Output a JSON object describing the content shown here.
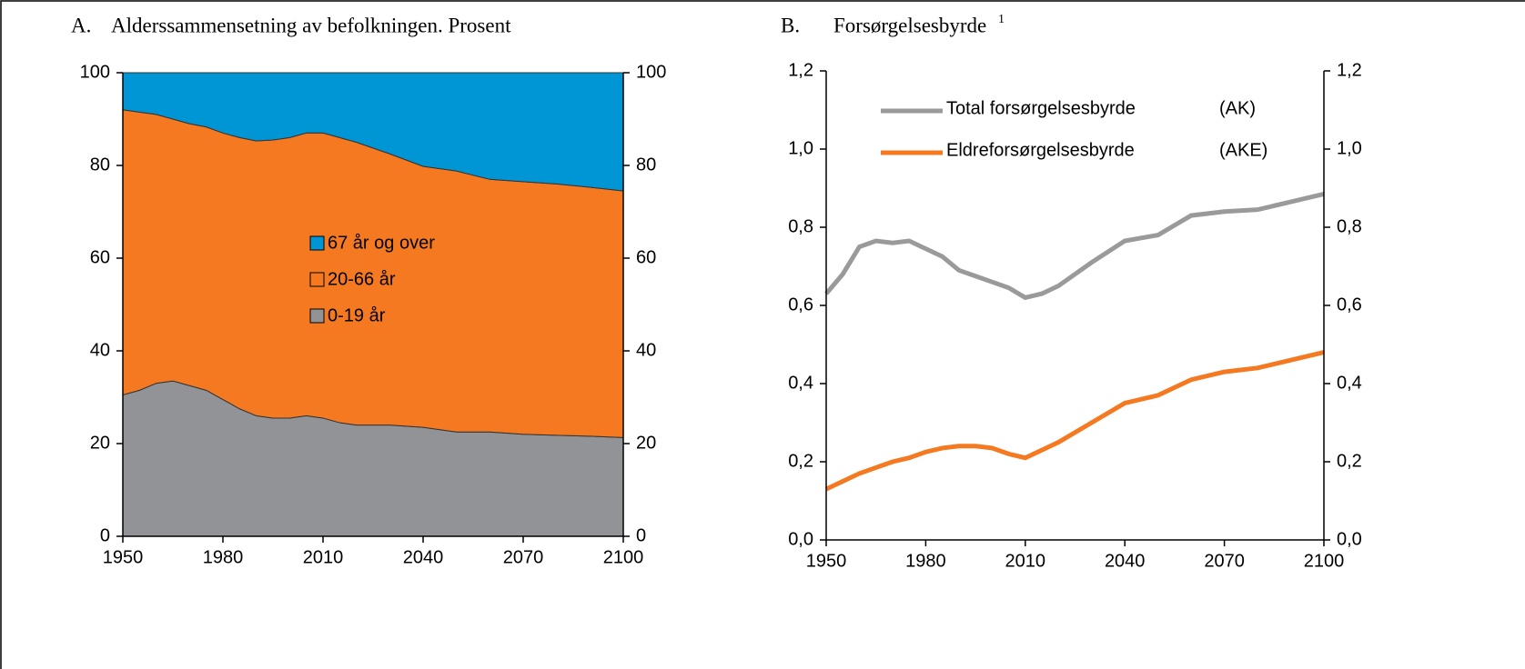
{
  "chart_data": [
    {
      "type": "stacked_area",
      "title_label": "A.",
      "title": "Alderssammensetning av befolkningen. Prosent",
      "x": [
        1950,
        1955,
        1960,
        1965,
        1970,
        1975,
        1980,
        1985,
        1990,
        1995,
        2000,
        2005,
        2010,
        2015,
        2020,
        2030,
        2040,
        2050,
        2060,
        2070,
        2080,
        2090,
        2100
      ],
      "series": [
        {
          "name": "0-19 år",
          "color": "#929397",
          "values": [
            30.5,
            31.5,
            33,
            33.5,
            32.5,
            31.5,
            29.5,
            27.5,
            26,
            25.5,
            25.5,
            26,
            25.5,
            24.5,
            24,
            24,
            23.5,
            22.5,
            22.5,
            22,
            21.8,
            21.6,
            21.3
          ]
        },
        {
          "name": "20-66 år",
          "color": "#f47920",
          "values": [
            61.5,
            60,
            58,
            56.5,
            56.5,
            56.8,
            57.5,
            58.5,
            59.3,
            60,
            60.5,
            61,
            61.5,
            61.5,
            61,
            58.5,
            56.3,
            56.3,
            54.5,
            54.5,
            54.2,
            53.7,
            53.2
          ]
        },
        {
          "name": "67 år og over",
          "color": "#0096d6",
          "values": [
            8,
            8.5,
            9,
            10,
            11,
            11.7,
            13,
            14,
            14.7,
            14.5,
            14,
            13,
            13,
            14,
            15,
            17.5,
            20.2,
            21.2,
            23,
            23.5,
            24,
            24.7,
            25.5
          ]
        }
      ],
      "xlim": [
        1950,
        2100
      ],
      "xticks": [
        1950,
        1980,
        2010,
        2040,
        2070,
        2100
      ],
      "ylim": [
        0,
        100
      ],
      "yticks": [
        0,
        20,
        40,
        60,
        80,
        100
      ],
      "y2lim": [
        0,
        100
      ],
      "y2ticks": [
        0,
        20,
        40,
        60,
        80,
        100
      ]
    },
    {
      "type": "line",
      "title_label": "B.",
      "title": "Forsørgelsesbyrde",
      "title_superscript": "1",
      "x": [
        1950,
        1955,
        1960,
        1965,
        1970,
        1975,
        1980,
        1985,
        1990,
        1995,
        2000,
        2005,
        2010,
        2015,
        2020,
        2030,
        2040,
        2050,
        2060,
        2070,
        2080,
        2090,
        2100
      ],
      "series": [
        {
          "name": "Total forsørgelsesbyrde",
          "note": "(AK)",
          "color": "#9a9a9a",
          "values": [
            0.63,
            0.68,
            0.75,
            0.765,
            0.76,
            0.765,
            0.745,
            0.725,
            0.69,
            0.675,
            0.66,
            0.645,
            0.62,
            0.63,
            0.65,
            0.71,
            0.765,
            0.78,
            0.83,
            0.84,
            0.845,
            0.865,
            0.885
          ]
        },
        {
          "name": "Eldreforsørgelsesbyrde",
          "note": "(AKE)",
          "color": "#f47920",
          "values": [
            0.13,
            0.15,
            0.17,
            0.185,
            0.2,
            0.21,
            0.225,
            0.235,
            0.24,
            0.24,
            0.235,
            0.22,
            0.21,
            0.23,
            0.25,
            0.3,
            0.35,
            0.37,
            0.41,
            0.43,
            0.44,
            0.46,
            0.48
          ]
        }
      ],
      "xlim": [
        1950,
        2100
      ],
      "xticks": [
        1950,
        1980,
        2010,
        2040,
        2070,
        2100
      ],
      "ylim": [
        0,
        1.2
      ],
      "yticks": [
        {
          "value": 0,
          "label": "0,0"
        },
        {
          "value": 0.2,
          "label": "0,2"
        },
        {
          "value": 0.4,
          "label": "0,4"
        },
        {
          "value": 0.6,
          "label": "0,6"
        },
        {
          "value": 0.8,
          "label": "0,8"
        },
        {
          "value": 1.0,
          "label": "1,0"
        },
        {
          "value": 1.2,
          "label": "1,2"
        }
      ],
      "y2lim": [
        0,
        1.2
      ],
      "y2ticks": [
        {
          "value": 0,
          "label": "0,0"
        },
        {
          "value": 0.2,
          "label": "0,2"
        },
        {
          "value": 0.4,
          "label": "0,4"
        },
        {
          "value": 0.6,
          "label": "0,6"
        },
        {
          "value": 0.8,
          "label": "0,8"
        },
        {
          "value": 1.0,
          "label": "1,0"
        },
        {
          "value": 1.2,
          "label": "1,2"
        }
      ]
    }
  ]
}
